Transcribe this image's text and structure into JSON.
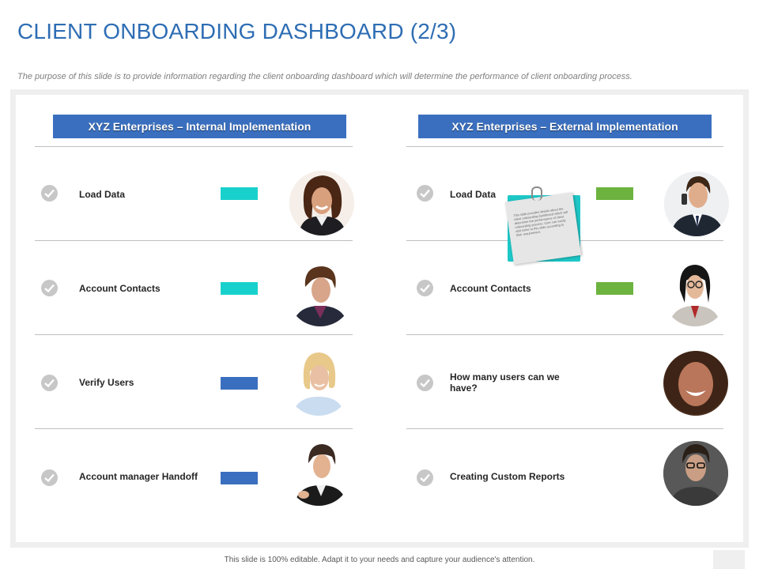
{
  "title": "CLIENT ONBOARDING DASHBOARD (2/3)",
  "subtitle": "The purpose of this slide is to provide information regarding the client onboarding dashboard which will determine the performance of client onboarding process.",
  "left": {
    "header": "XYZ Enterprises – Internal Implementation",
    "items": [
      {
        "label": "Load Data",
        "bar_color": "#19d1cc"
      },
      {
        "label": "Account Contacts",
        "bar_color": "#19d1cc"
      },
      {
        "label": "Verify Users",
        "bar_color": "#3a6fbf"
      },
      {
        "label": "Account manager Handoff",
        "bar_color": "#3a6fbf"
      }
    ]
  },
  "right": {
    "header": "XYZ Enterprises – External Implementation",
    "items": [
      {
        "label": "Load Data",
        "bar_color": "#6db33f"
      },
      {
        "label": "Account Contacts",
        "bar_color": "#6db33f"
      },
      {
        "label": "How many users can we have?"
      },
      {
        "label": "Creating Custom Reports"
      }
    ]
  },
  "sticky_note": "This slide provides details about the client onboarding dashboard which will determine the performance of client onboarding process. User can easily add notes to this slide according to their requirement.",
  "footer": "This slide is 100% editable. Adapt it to your needs and capture your audience's attention.",
  "colors": {
    "accent": "#2e6db4",
    "header_bg": "#3a6fbf",
    "teal": "#19d1cc",
    "green": "#6db33f"
  }
}
